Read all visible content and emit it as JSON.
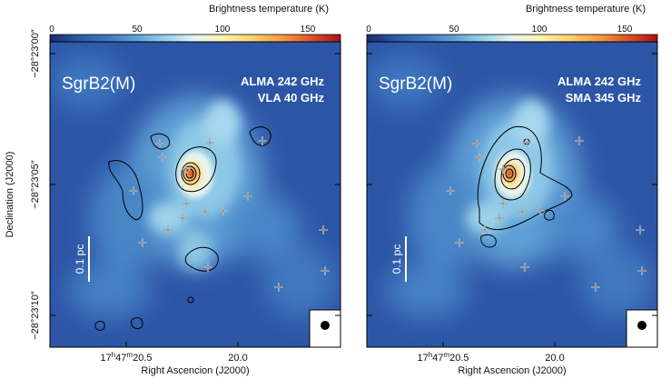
{
  "figure": {
    "ylabel": "Declination (J2000)",
    "colormap": [
      "#1a2a6c",
      "#2e5aa8",
      "#3f79c2",
      "#5fa2d8",
      "#9bd0ea",
      "#e6f5f0",
      "#fff3b0",
      "#fdd06a",
      "#f69b3d",
      "#e0502a",
      "#a8101a"
    ]
  },
  "chart_data": [
    {
      "type": "heatmap",
      "panel": "left",
      "colorbar": {
        "label": "Brightness temperature (K)",
        "ticks": [
          "0",
          "50",
          "100",
          "150"
        ],
        "range": [
          0,
          170
        ]
      },
      "source_label": "SgrB2(M)",
      "band_labels": [
        "ALMA 242 GHz",
        "VLA 40 GHz"
      ],
      "scalebar_label": "0.1 pc",
      "xlabel": "Right Ascencion (J2000)",
      "xticks": [
        {
          "pre": "17",
          "h": "h",
          "mid": "47",
          "m": "m",
          "post": "20.5"
        },
        {
          "pre": "20.0",
          "h": "",
          "mid": "",
          "m": "",
          "post": ""
        }
      ],
      "yticks": [
        "−28°23′00″",
        "−28°23′05″",
        "−28°23′10″"
      ],
      "peak_temperature_K": 165,
      "markers": 17,
      "contours": "VLA 40 GHz continuum",
      "beam": "filled circle, lower right"
    },
    {
      "type": "heatmap",
      "panel": "right",
      "colorbar": {
        "label": "Brightness temperature (K)",
        "ticks": [
          "0",
          "50",
          "100",
          "150"
        ],
        "range": [
          0,
          170
        ]
      },
      "source_label": "SgrB2(M)",
      "band_labels": [
        "ALMA 242 GHz",
        "SMA 345 GHz"
      ],
      "scalebar_label": "0.1 pc",
      "xlabel": "Right Ascencion (J2000)",
      "xticks": [
        {
          "pre": "17",
          "h": "h",
          "mid": "47",
          "m": "m",
          "post": "20.5"
        },
        {
          "pre": "20.0",
          "h": "",
          "mid": "",
          "m": "",
          "post": ""
        }
      ],
      "yticks": [],
      "peak_temperature_K": 165,
      "markers": 17,
      "contours": "SMA 345 GHz continuum",
      "beam": "filled circle, lower right"
    }
  ]
}
